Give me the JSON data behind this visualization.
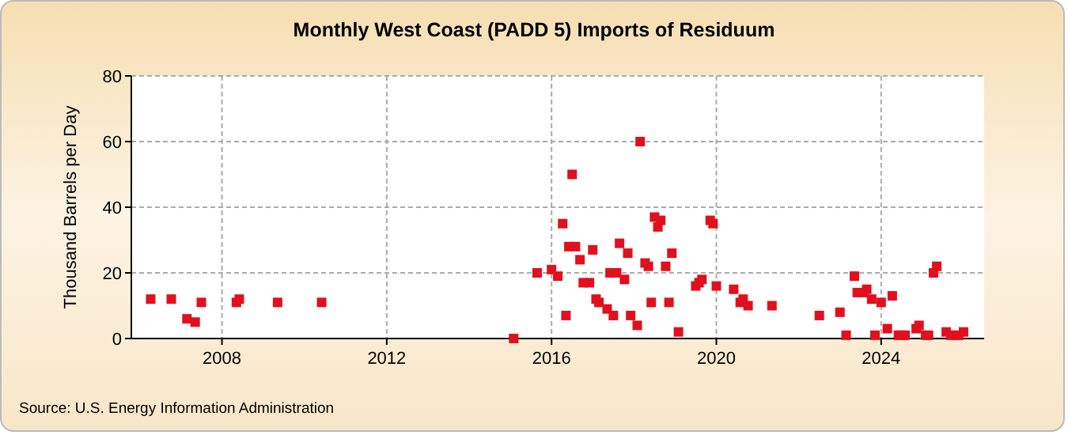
{
  "chart_data": {
    "type": "scatter",
    "title": "Monthly West Coast (PADD 5) Imports of Residuum",
    "ylabel": "Thousand Barrels per Day",
    "annotations": [
      "Source: U.S. Energy Information Administration"
    ],
    "x": [
      2006.27,
      2006.77,
      2007.15,
      2007.35,
      2007.5,
      2008.35,
      2008.42,
      2009.35,
      2010.42,
      2015.08,
      2015.65,
      2016.0,
      2016.15,
      2016.27,
      2016.35,
      2016.42,
      2016.5,
      2016.58,
      2016.69,
      2016.77,
      2016.92,
      2017.0,
      2017.08,
      2017.15,
      2017.35,
      2017.42,
      2017.5,
      2017.58,
      2017.65,
      2017.77,
      2017.85,
      2017.92,
      2018.08,
      2018.15,
      2018.27,
      2018.35,
      2018.42,
      2018.5,
      2018.58,
      2018.65,
      2018.77,
      2018.85,
      2018.92,
      2019.08,
      2019.5,
      2019.58,
      2019.65,
      2019.85,
      2019.92,
      2020.0,
      2020.42,
      2020.58,
      2020.65,
      2020.77,
      2021.35,
      2022.5,
      2023.0,
      2023.15,
      2023.35,
      2023.42,
      2023.58,
      2023.65,
      2023.77,
      2023.85,
      2024.0,
      2024.15,
      2024.27,
      2024.42,
      2024.5,
      2024.58,
      2024.85,
      2024.92,
      2025.08,
      2025.15,
      2025.27,
      2025.35,
      2025.58,
      2025.69,
      2025.81,
      2025.88,
      2026.0
    ],
    "series": [
      {
        "color": "#e0101e",
        "values": [
          12,
          12,
          6,
          5,
          11,
          11,
          12,
          11,
          11,
          0,
          20,
          21,
          19,
          35,
          7,
          28,
          50,
          28,
          24,
          17,
          17,
          27,
          12,
          11,
          9,
          20,
          7,
          20,
          29,
          18,
          26,
          7,
          4,
          60,
          23,
          22,
          11,
          37,
          34,
          36,
          22,
          11,
          26,
          2,
          16,
          17,
          18,
          36,
          35,
          16,
          15,
          11,
          12,
          10,
          10,
          7,
          8,
          1,
          19,
          14,
          14,
          15,
          12,
          1,
          11,
          3,
          13,
          1,
          1,
          1,
          3,
          4,
          1,
          1,
          20,
          22,
          2,
          1,
          1,
          1,
          2
        ]
      }
    ],
    "xlim": [
      2005.8,
      2026.5
    ],
    "xticks": [
      2008,
      2012,
      2016,
      2020,
      2024
    ],
    "ylim": [
      0,
      80
    ],
    "yticks": [
      0,
      20,
      40,
      60,
      80
    ],
    "grid": true,
    "marker": "square"
  }
}
